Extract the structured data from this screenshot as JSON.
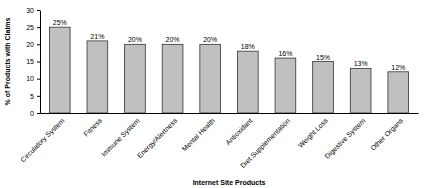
{
  "chart_data": {
    "type": "bar",
    "x_label": "Internet Site Products",
    "y_label": "% of Products with Claims",
    "categories": [
      "Circulatory System",
      "Fitness",
      "Immune System",
      "Energy/Alertness",
      "Mental Health",
      "Antioxidant",
      "Diet Supplementation",
      "Weight Loss",
      "Digestive System",
      "Other Organs"
    ],
    "values": [
      25,
      21,
      20,
      20,
      20,
      18,
      16,
      15,
      13,
      12
    ],
    "value_labels": [
      "25%",
      "21%",
      "20%",
      "20%",
      "20%",
      "18%",
      "16%",
      "15%",
      "13%",
      "12%"
    ],
    "data_labels": true,
    "color": "#c0c0c0",
    "ylim": [
      0,
      30
    ],
    "yticks": [
      0,
      5,
      10,
      15,
      20,
      25,
      30
    ],
    "grid": false
  }
}
